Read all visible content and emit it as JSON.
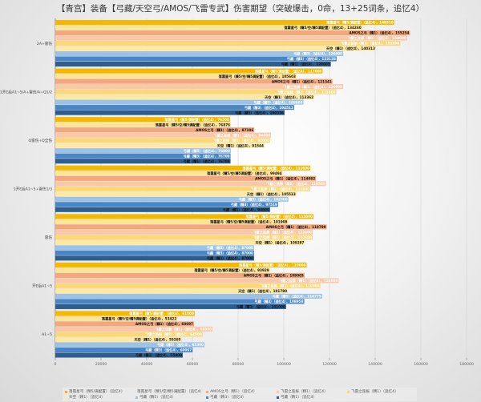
{
  "chart_data": {
    "type": "bar",
    "orientation": "horizontal",
    "title": "【青宫】装备【弓藏/天空弓/AMOS/飞雷专武】伤害期望（突破爆击，0命，13+25词条，追忆4）",
    "xlabel": "",
    "ylabel": "",
    "xlim": [
      0,
      180000
    ],
    "xticks": [
      "0",
      "20000",
      "40000",
      "60000",
      "80000",
      "100000",
      "120000",
      "140000",
      "160000",
      "180000"
    ],
    "grid": true,
    "legend_position": "bottom",
    "categories": [
      "2A+雷伤",
      "1开E后A1~5/A+雷伤/A+Q1/2",
      "Q雷伤+Q全伤",
      "1开E后A1~5+雷伤1/3",
      "雷伤",
      "开E后A1~5",
      "A1~5"
    ],
    "series": [
      {
        "name": "落霞星弓（精5/满配置）（追忆4）",
        "color": "#f5b800",
        "values": [
          148310,
          117000,
          76500,
          111600,
          113000,
          110000,
          61000
        ]
      },
      {
        "name": "落霞星弓（精5/空/精5满配置）（追忆4）",
        "color": "#fde49a",
        "values": [
          134260,
          105603,
          76876,
          99494,
          101908,
          93929,
          53422
        ]
      },
      {
        "name": "AMOS之弓（精1）（追忆4）",
        "color": "#f2a77c",
        "values": [
          155254,
          121341,
          87106,
          114082,
          118799,
          109065,
          60697
        ]
      },
      {
        "name": "飞雷之弦振（精1）（追忆4）",
        "color": "#f8c8a8",
        "values": [
          154000,
          126000,
          94400,
          118500,
          112600,
          124000,
          68800
        ]
      },
      {
        "name": "飞雷之弦振（精1）（追忆4）",
        "color": "#fcd77a",
        "values": [
          151000,
          123000,
          94000,
          111600,
          112600,
          116000,
          64500
        ]
      },
      {
        "name": "天空（精1）（追忆4）",
        "color": "#fde8a6",
        "values": [
          140313,
          113362,
          91544,
          105533,
          109287,
          101780,
          55285
        ]
      },
      {
        "name": "弓藏（精5）（追忆4）",
        "color": "#9cc3e6",
        "values": [
          126000,
          108600,
          76800,
          102000,
          87000,
          116775,
          65300
        ]
      },
      {
        "name": "弓藏（精3）（追忆4）",
        "color": "#4a86c5",
        "values": [
          123128,
          104511,
          76700,
          97519,
          87000,
          108958,
          60067
        ]
      },
      {
        "name": "弓藏（精1）（追忆4）",
        "color": "#2e5e8e",
        "values": [
          120603,
          100336,
          76700,
          94000,
          87000,
          101000,
          55800
        ]
      }
    ]
  }
}
